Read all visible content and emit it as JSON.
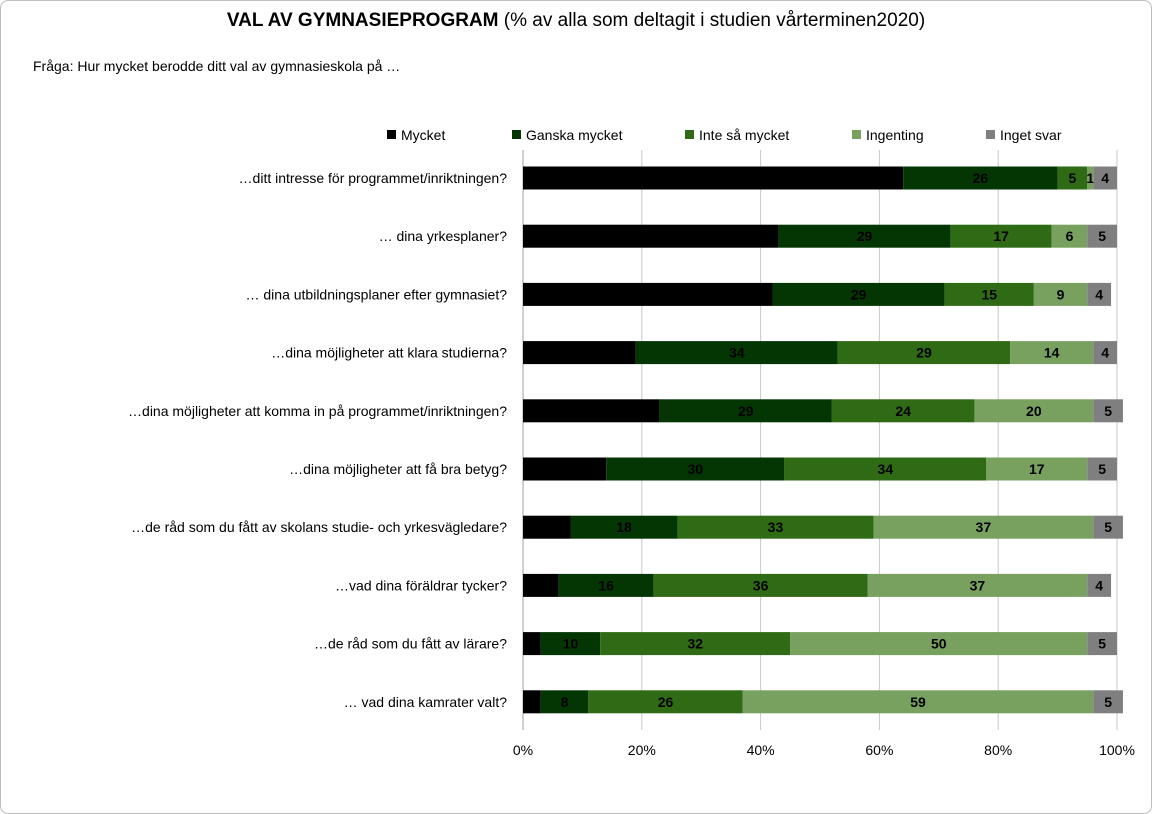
{
  "chart_data": {
    "type": "bar",
    "orientation": "horizontal",
    "stacked": "100%",
    "title_bold": "VAL AV GYMNASIEPROGRAM",
    "title_rest": " (% av alla som deltagit i studien vårterminen2020)",
    "subtitle": "Fråga: Hur mycket berodde ditt val av gymnasieskola på …",
    "categories": [
      "…ditt intresse för programmet/inriktningen?",
      "… dina yrkesplaner?",
      "… dina utbildningsplaner efter gymnasiet?",
      "…dina möjligheter att klara studierna?",
      "…dina möjligheter att komma in på programmet/inriktningen?",
      "…dina möjligheter att få bra betyg?",
      "…de råd som du fått av skolans studie- och yrkesvägledare?",
      "…vad dina föräldrar tycker?",
      "…de råd som du fått av lärare?",
      "… vad dina kamrater valt?"
    ],
    "series": [
      {
        "name": "Mycket",
        "color": "#000000",
        "values": [
          64,
          43,
          42,
          19,
          23,
          14,
          8,
          6,
          3,
          3
        ]
      },
      {
        "name": "Ganska mycket",
        "color": "#033603",
        "values": [
          26,
          29,
          29,
          34,
          29,
          30,
          18,
          16,
          10,
          8
        ]
      },
      {
        "name": "Inte så mycket",
        "color": "#2f6a14",
        "values": [
          5,
          17,
          15,
          29,
          24,
          34,
          33,
          36,
          32,
          26
        ]
      },
      {
        "name": "Ingenting",
        "color": "#78a160",
        "values": [
          1,
          6,
          9,
          14,
          20,
          17,
          37,
          37,
          50,
          59
        ]
      },
      {
        "name": "Inget svar",
        "color": "#7f7f7f",
        "values": [
          4,
          5,
          4,
          4,
          5,
          5,
          5,
          4,
          5,
          5
        ]
      }
    ],
    "xticks": [
      "0%",
      "20%",
      "40%",
      "60%",
      "80%",
      "100%"
    ],
    "xlim": [
      0,
      100
    ],
    "grid": true,
    "legend": "top"
  }
}
